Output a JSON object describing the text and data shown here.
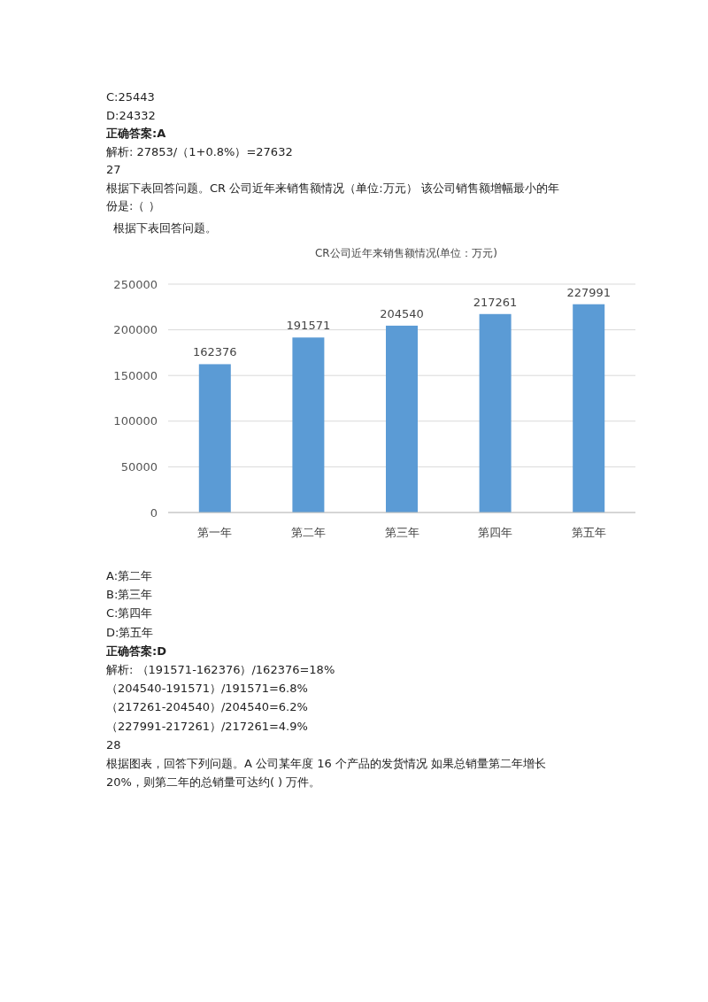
{
  "chart_data": {
    "type": "bar",
    "title": "CR公司近年来销售额情况(单位：万元)",
    "categories": [
      "第一年",
      "第二年",
      "第三年",
      "第四年",
      "第五年"
    ],
    "values": [
      162376,
      191571,
      204540,
      217261,
      227991
    ],
    "color": "#5b9bd5",
    "ylim": [
      0,
      250000
    ],
    "yticks": [
      0,
      50000,
      100000,
      150000,
      200000,
      250000
    ],
    "grid": "y",
    "data_labels": true,
    "annotations": [
      "C:25443",
      "D:24332",
      "正确答案:A",
      "解析: 27853/（1+0.8%）=27632",
      "27",
      "根据下表回答问题。CR 公司近年来销售额情况（单位:万元） 该公司销售额增幅最小的年",
      "份是:（ ）",
      "根据下表回答问题。",
      "A:第二年",
      "B:第三年",
      "C:第四年",
      "D:第五年",
      "正确答案:D",
      "解析: （191571-162376）/162376=18%",
      "（204540-191571）/191571=6.8%",
      "（217261-204540）/204540=6.2%",
      "（227991-217261）/217261=4.9%",
      "28",
      "根据图表，回答下列问题。A 公司某年度 16 个产品的发货情况 如果总销量第二年增长",
      "20%，则第二年的总销量可达约( ) 万件。"
    ]
  }
}
